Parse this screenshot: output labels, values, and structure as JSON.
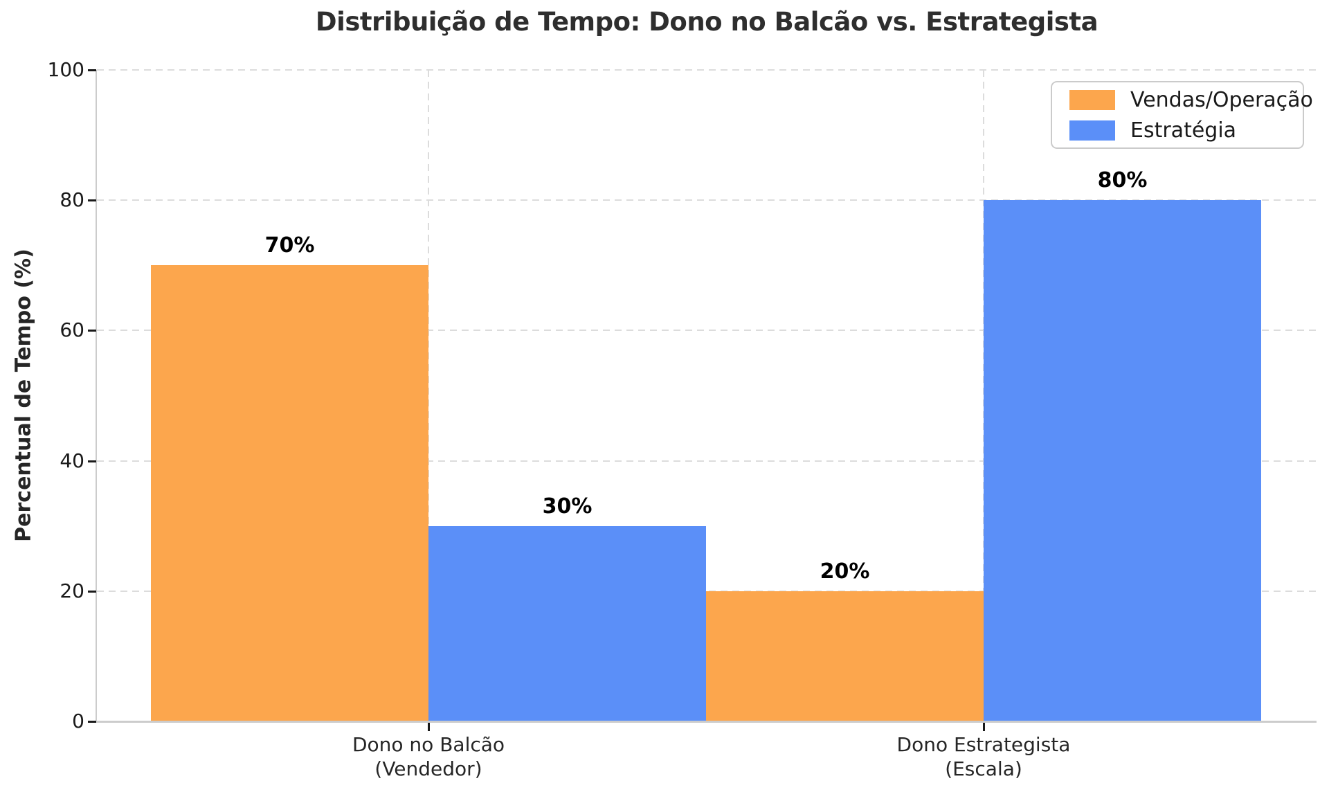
{
  "chart_data": {
    "type": "bar",
    "title": "Distribuição de Tempo: Dono no Balcão vs. Estrategista",
    "ylabel": "Percentual de Tempo (%)",
    "xlabel": "",
    "categories": [
      "Dono no Balcão (Vendedor)",
      "Dono Estrategista (Escala)"
    ],
    "category_lines": [
      [
        "Dono no Balcão",
        "(Vendedor)"
      ],
      [
        "Dono Estrategista",
        "(Escala)"
      ]
    ],
    "series": [
      {
        "name": "Vendas/Operação",
        "color": "#fca64d",
        "values": [
          70,
          20
        ],
        "value_labels": [
          "70%",
          "20%"
        ]
      },
      {
        "name": "Estratégia",
        "color": "#5b8ff8",
        "values": [
          30,
          80
        ],
        "value_labels": [
          "30%",
          "80%"
        ]
      }
    ],
    "ylim": [
      0,
      100
    ],
    "yticks": [
      0,
      20,
      40,
      60,
      80,
      100
    ],
    "ytick_labels": [
      "0",
      "20",
      "40",
      "60",
      "80",
      "100"
    ],
    "bar_width_fraction": 0.5,
    "grid": {
      "style": "dashed",
      "horizontal": true,
      "vertical": true,
      "color": "#dcdcdc"
    },
    "legend": {
      "position": "upper right",
      "items": [
        "Vendas/Operação",
        "Estratégia"
      ]
    }
  },
  "styles": {
    "background": "#ffffff",
    "title_color": "#2e2e2e",
    "text_color": "#1a1a1a",
    "spine_color": "#cccccc",
    "grid_color": "#dcdcdc",
    "series_colors": [
      "#fca64d",
      "#5b8ff8"
    ]
  }
}
